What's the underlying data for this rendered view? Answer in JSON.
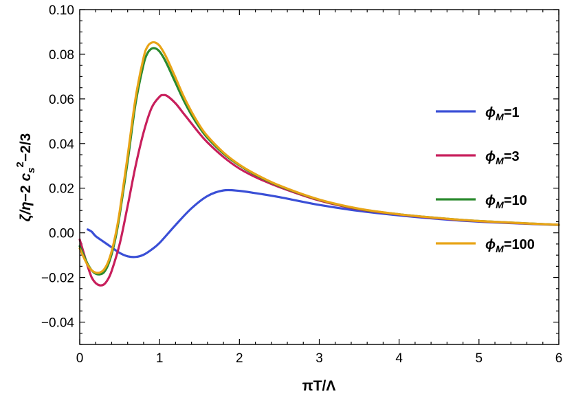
{
  "chart_data": {
    "type": "line",
    "title": "",
    "xlabel": "πT/Λ",
    "ylabel": "ζ/η−2 c_s^2−2/3",
    "xlim": [
      0,
      6
    ],
    "ylim": [
      -0.05,
      0.1
    ],
    "x_ticks": [
      0,
      1,
      2,
      3,
      4,
      5,
      6
    ],
    "x_tick_labels": [
      "0",
      "1",
      "2",
      "3",
      "4",
      "5",
      "6"
    ],
    "y_ticks": [
      -0.04,
      -0.02,
      0.0,
      0.02,
      0.04,
      0.06,
      0.08,
      0.1
    ],
    "y_tick_labels": [
      "−0.04",
      "−0.02",
      "0.00",
      "0.02",
      "0.04",
      "0.06",
      "0.08",
      "0.10"
    ],
    "grid": false,
    "legend_position": "right",
    "series": [
      {
        "name": "ϕM=1",
        "legend_main": "ϕ",
        "legend_sub": "M",
        "legend_value": "=1",
        "color": "#3a4fd6",
        "x": [
          0.1,
          0.15,
          0.2,
          0.3,
          0.4,
          0.5,
          0.6,
          0.7,
          0.8,
          0.9,
          1.0,
          1.2,
          1.4,
          1.6,
          1.8,
          2.0,
          2.2,
          2.5,
          3.0,
          3.5,
          4.0,
          4.5,
          5.0,
          5.5,
          6.0
        ],
        "y": [
          0.0015,
          0.0005,
          -0.0015,
          -0.004,
          -0.0065,
          -0.009,
          -0.0105,
          -0.0108,
          -0.0098,
          -0.0075,
          -0.0045,
          0.0035,
          0.011,
          0.0165,
          0.019,
          0.0188,
          0.0178,
          0.016,
          0.0125,
          0.0098,
          0.0078,
          0.0062,
          0.005,
          0.0042,
          0.0035
        ]
      },
      {
        "name": "ϕM=3",
        "legend_main": "ϕ",
        "legend_sub": "M",
        "legend_value": "=3",
        "color": "#c81f5c",
        "x": [
          0.0,
          0.05,
          0.1,
          0.15,
          0.2,
          0.25,
          0.3,
          0.35,
          0.4,
          0.5,
          0.6,
          0.7,
          0.8,
          0.9,
          1.0,
          1.05,
          1.1,
          1.2,
          1.3,
          1.4,
          1.5,
          1.6,
          1.8,
          2.0,
          2.2,
          2.5,
          3.0,
          3.5,
          4.0,
          4.5,
          5.0,
          5.5,
          6.0
        ],
        "y": [
          -0.003,
          -0.009,
          -0.015,
          -0.02,
          -0.0225,
          -0.0235,
          -0.0232,
          -0.021,
          -0.017,
          -0.005,
          0.012,
          0.03,
          0.045,
          0.056,
          0.061,
          0.0617,
          0.0612,
          0.058,
          0.0535,
          0.049,
          0.0445,
          0.0405,
          0.034,
          0.0288,
          0.025,
          0.0205,
          0.0145,
          0.0105,
          0.0082,
          0.0065,
          0.0052,
          0.0043,
          0.0036
        ]
      },
      {
        "name": "ϕM=10",
        "legend_main": "ϕ",
        "legend_sub": "M",
        "legend_value": "=10",
        "color": "#2a8a2e",
        "x": [
          0.0,
          0.05,
          0.1,
          0.15,
          0.2,
          0.25,
          0.3,
          0.35,
          0.4,
          0.45,
          0.5,
          0.6,
          0.7,
          0.8,
          0.85,
          0.9,
          0.95,
          1.0,
          1.05,
          1.1,
          1.2,
          1.3,
          1.4,
          1.5,
          1.6,
          1.8,
          2.0,
          2.2,
          2.5,
          3.0,
          3.5,
          4.0,
          4.5,
          5.0,
          5.5,
          6.0
        ],
        "y": [
          -0.006,
          -0.01,
          -0.014,
          -0.0168,
          -0.0183,
          -0.0186,
          -0.0178,
          -0.0148,
          -0.0095,
          -0.002,
          0.008,
          0.032,
          0.058,
          0.0755,
          0.0805,
          0.0825,
          0.0826,
          0.0812,
          0.0785,
          0.075,
          0.0672,
          0.0595,
          0.0528,
          0.0472,
          0.0425,
          0.0355,
          0.0302,
          0.026,
          0.021,
          0.0148,
          0.0107,
          0.0083,
          0.0066,
          0.0053,
          0.0044,
          0.0036
        ]
      },
      {
        "name": "ϕM=100",
        "legend_main": "ϕ",
        "legend_sub": "M",
        "legend_value": "=100",
        "color": "#e8a416",
        "x": [
          0.0,
          0.05,
          0.1,
          0.15,
          0.2,
          0.25,
          0.3,
          0.35,
          0.4,
          0.45,
          0.5,
          0.6,
          0.7,
          0.8,
          0.85,
          0.9,
          0.95,
          1.0,
          1.05,
          1.1,
          1.2,
          1.3,
          1.4,
          1.5,
          1.6,
          1.8,
          2.0,
          2.2,
          2.5,
          3.0,
          3.5,
          4.0,
          4.5,
          5.0,
          5.5,
          6.0
        ],
        "y": [
          -0.007,
          -0.011,
          -0.0145,
          -0.0168,
          -0.0178,
          -0.0178,
          -0.0166,
          -0.0135,
          -0.0082,
          -0.0005,
          0.0095,
          0.0345,
          0.0605,
          0.0785,
          0.0835,
          0.0852,
          0.0852,
          0.0838,
          0.081,
          0.0775,
          0.0695,
          0.0613,
          0.0543,
          0.0482,
          0.0433,
          0.036,
          0.0305,
          0.0263,
          0.0212,
          0.0149,
          0.0108,
          0.0083,
          0.0066,
          0.0053,
          0.0044,
          0.0036
        ]
      }
    ]
  }
}
